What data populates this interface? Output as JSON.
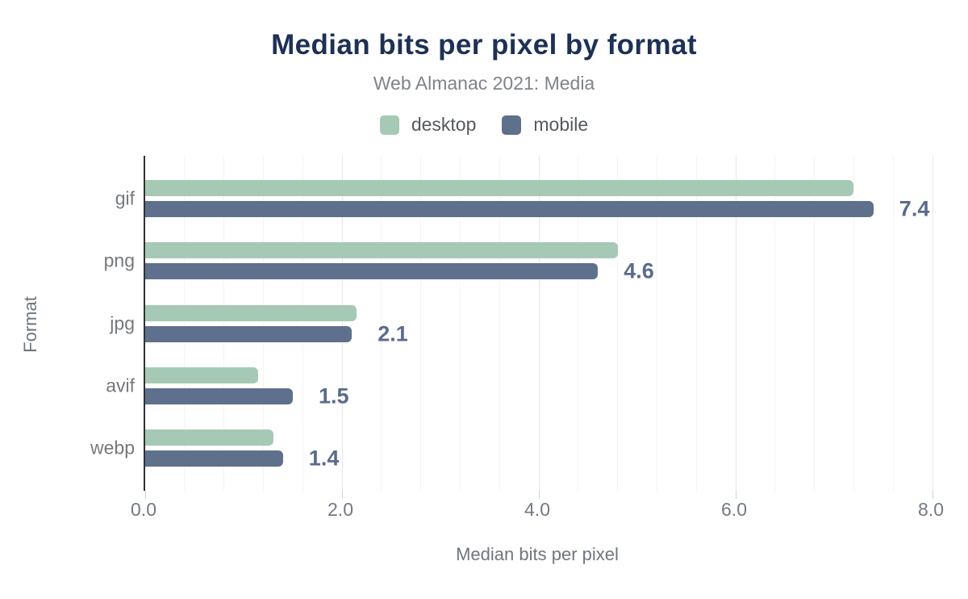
{
  "title": "Median bits per pixel by format",
  "subtitle": "Web Almanac 2021: Media",
  "legend": [
    {
      "label": "desktop",
      "color": "#a6c9b6"
    },
    {
      "label": "mobile",
      "color": "#5f708c"
    }
  ],
  "x_axis": {
    "title": "Median bits per pixel",
    "ticks": [
      "0.0",
      "2.0",
      "4.0",
      "6.0",
      "8.0"
    ],
    "tick_values": [
      0,
      2,
      4,
      6,
      8
    ],
    "min": 0,
    "max": 8,
    "minor_step": 0.4
  },
  "y_axis": {
    "title": "Format"
  },
  "colors": {
    "desktop": "#a6c9b6",
    "mobile": "#5f708c",
    "value_label": "#5a6b8d",
    "title": "#1d3155",
    "axis_line": "#303234"
  },
  "chart_data": {
    "type": "bar",
    "orientation": "horizontal",
    "title": "Median bits per pixel by format",
    "subtitle": "Web Almanac 2021: Media",
    "xlabel": "Median bits per pixel",
    "ylabel": "Format",
    "xlim": [
      0,
      8
    ],
    "grid": "vertical minor gridlines, step 0.4; major step 2.0",
    "legend_position": "top center",
    "categories": [
      "gif",
      "png",
      "jpg",
      "avif",
      "webp"
    ],
    "series": [
      {
        "name": "desktop",
        "color": "#a6c9b6",
        "values": [
          7.2,
          4.8,
          2.15,
          1.15,
          1.3
        ]
      },
      {
        "name": "mobile",
        "color": "#5f708c",
        "values": [
          7.4,
          4.6,
          2.1,
          1.5,
          1.4
        ]
      }
    ],
    "data_labels": {
      "on_series": "mobile",
      "values": [
        "7.4",
        "4.6",
        "2.1",
        "1.5",
        "1.4"
      ]
    }
  }
}
